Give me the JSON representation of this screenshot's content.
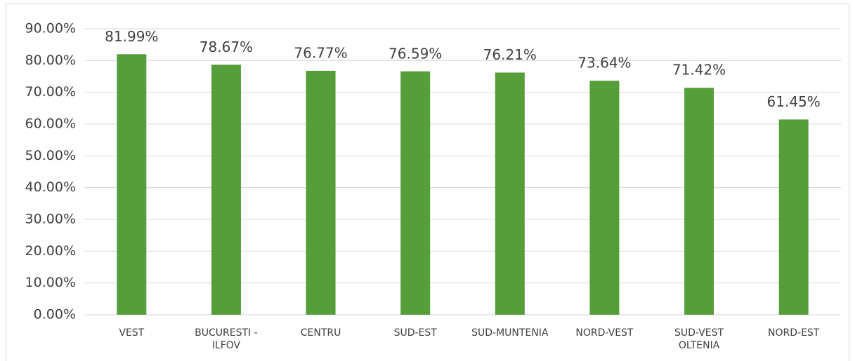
{
  "chart_data": {
    "type": "bar",
    "categories": [
      "VEST",
      "BUCURESTI -\nILFOV",
      "CENTRU",
      "SUD-EST",
      "SUD-MUNTENIA",
      "NORD-VEST",
      "SUD-VEST\nOLTENIA",
      "NORD-EST"
    ],
    "values": [
      81.99,
      78.67,
      76.77,
      76.59,
      76.21,
      73.64,
      71.42,
      61.45
    ],
    "value_labels": [
      "81.99%",
      "78.67%",
      "76.77%",
      "76.59%",
      "76.21%",
      "73.64%",
      "71.42%",
      "61.45%"
    ],
    "color": "#559e3a",
    "ylim": [
      0,
      90
    ],
    "yticks": [
      {
        "value": 0,
        "label": "0.00%"
      },
      {
        "value": 10,
        "label": "10.00%"
      },
      {
        "value": 20,
        "label": "20.00%"
      },
      {
        "value": 30,
        "label": "30.00%"
      },
      {
        "value": 40,
        "label": "40.00%"
      },
      {
        "value": 50,
        "label": "50.00%"
      },
      {
        "value": 60,
        "label": "60.00%"
      },
      {
        "value": 70,
        "label": "70.00%"
      },
      {
        "value": 80,
        "label": "80.00%"
      },
      {
        "value": 90,
        "label": "90.00%"
      }
    ],
    "grid": true
  }
}
